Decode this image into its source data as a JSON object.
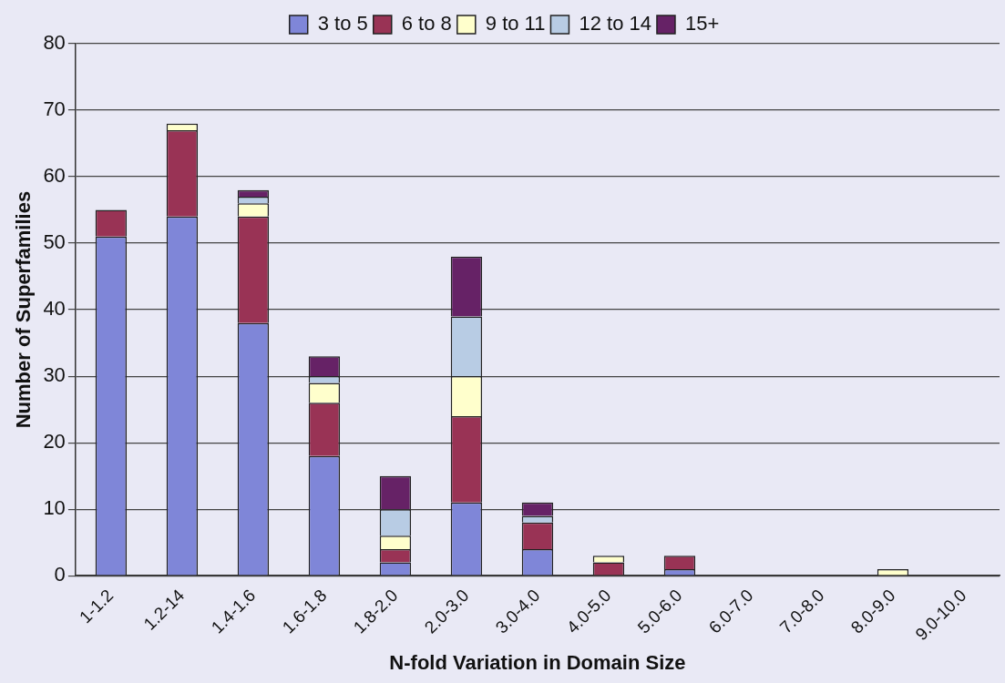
{
  "chart_data": {
    "type": "bar",
    "stacked": true,
    "xlabel": "N-fold Variation in Domain Size",
    "ylabel": "Number of Superfamilies",
    "categories": [
      "1-1.2",
      "1.2-14",
      "1.4-1.6",
      "1.6-1.8",
      "1.8-2.0",
      "2.0-3.0",
      "3.0-4.0",
      "4.0-5.0",
      "5.0-6.0",
      "6.0-7.0",
      "7.0-8.0",
      "8.0-9.0",
      "9.0-10.0"
    ],
    "series": [
      {
        "name": "3 to 5",
        "color": "#7f86d8",
        "values": [
          51,
          54,
          38,
          18,
          2,
          11,
          4,
          0,
          1,
          0,
          0,
          0,
          0
        ]
      },
      {
        "name": "6 to 8",
        "color": "#993355",
        "values": [
          4,
          13,
          16,
          8,
          2,
          13,
          4,
          2,
          2,
          0,
          0,
          0,
          0
        ]
      },
      {
        "name": "9 to 11",
        "color": "#ffffcc",
        "values": [
          0,
          1,
          2,
          3,
          2,
          6,
          0,
          1,
          0,
          0,
          0,
          1,
          0
        ]
      },
      {
        "name": "12 to 14",
        "color": "#b8cce4",
        "values": [
          0,
          0,
          1,
          1,
          4,
          9,
          1,
          0,
          0,
          0,
          0,
          0,
          0
        ]
      },
      {
        "name": "15+",
        "color": "#662266",
        "values": [
          0,
          0,
          1,
          3,
          5,
          9,
          2,
          0,
          0,
          0,
          0,
          0,
          0
        ]
      }
    ],
    "ylim": [
      0,
      80
    ],
    "yticks": [
      0,
      10,
      20,
      30,
      40,
      50,
      60,
      70,
      80
    ],
    "grid": "y",
    "legend": "top"
  }
}
